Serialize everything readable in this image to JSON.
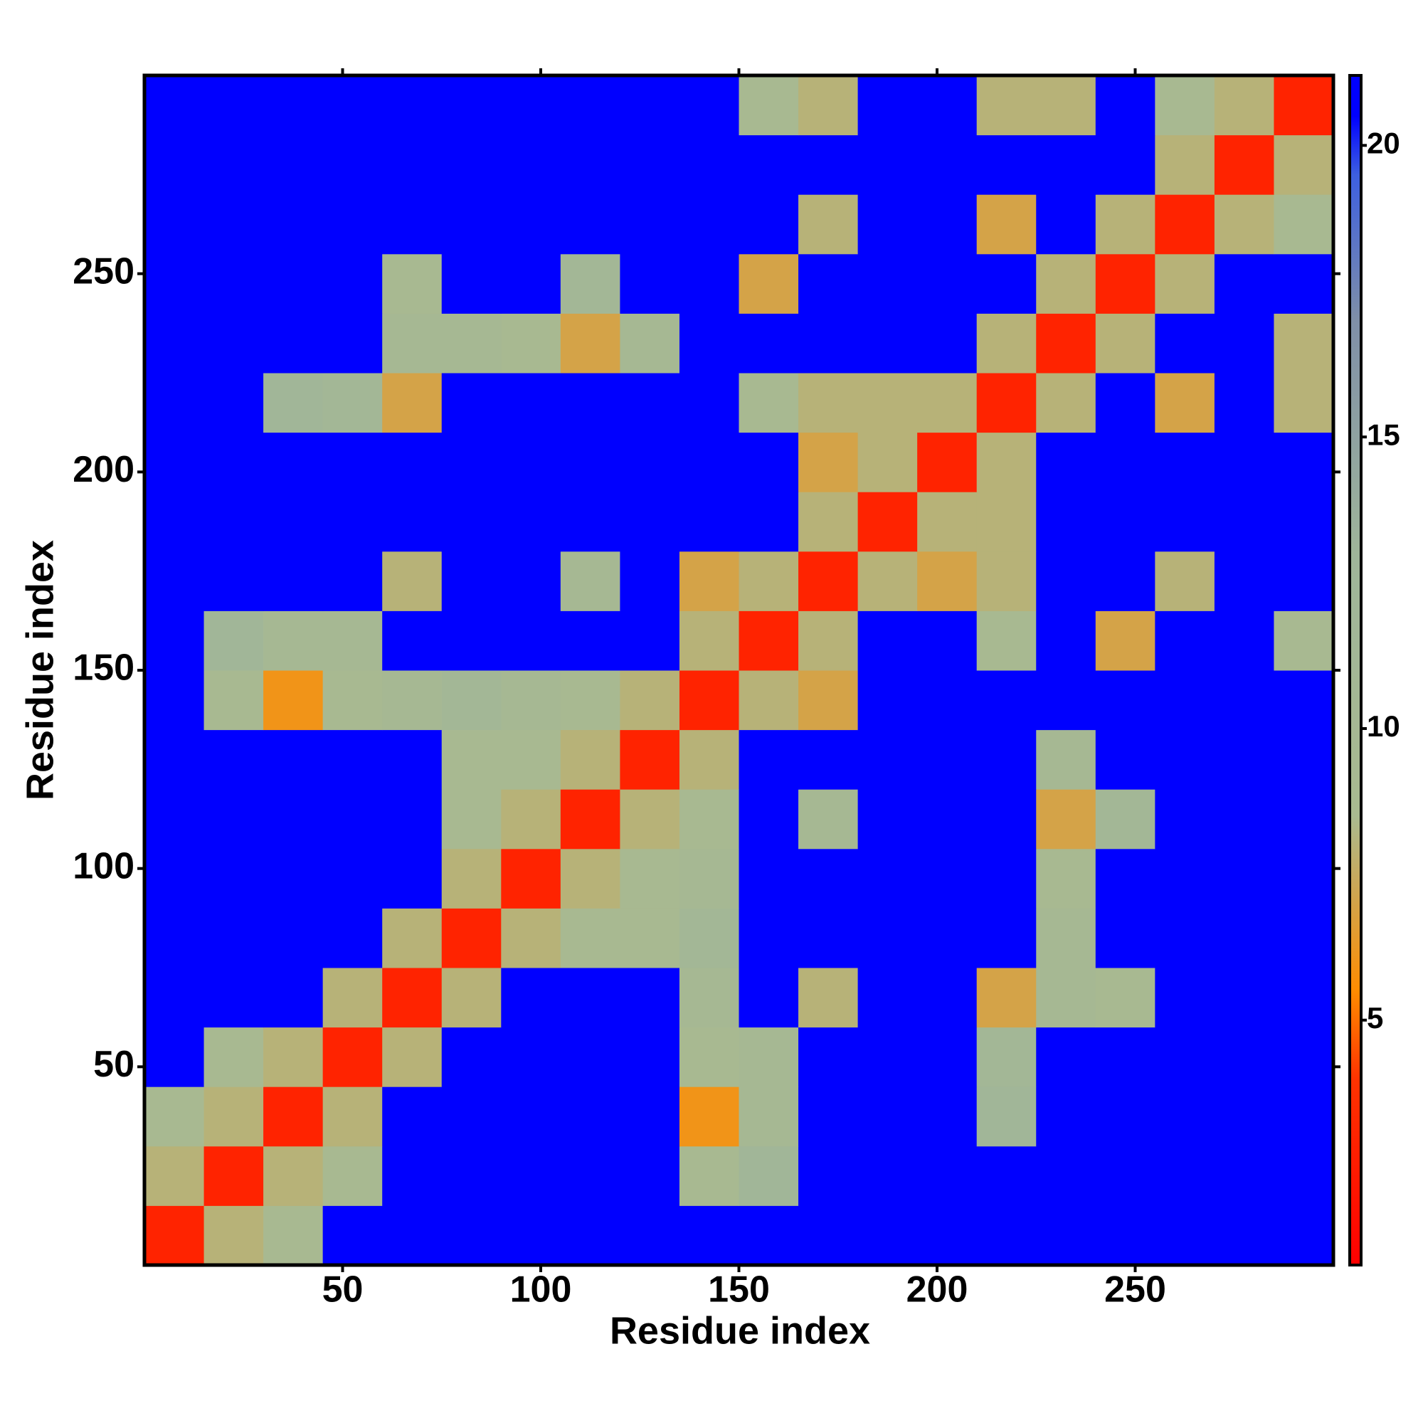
{
  "chart_data": {
    "type": "heatmap",
    "x_label": "Residue index",
    "y_label": "Residue index",
    "bins": [
      0,
      15,
      30,
      45,
      60,
      75,
      90,
      105,
      120,
      135,
      150,
      165,
      180,
      195,
      210,
      225,
      240,
      255,
      270,
      285,
      300
    ],
    "z": [
      [
        3,
        8,
        9,
        21,
        21,
        21,
        21,
        21,
        21,
        21,
        21,
        21,
        21,
        21,
        21,
        21,
        21,
        21,
        21,
        21
      ],
      [
        8,
        3,
        8,
        9,
        21,
        21,
        21,
        21,
        21,
        9,
        12,
        21,
        21,
        21,
        21,
        21,
        21,
        21,
        21,
        21
      ],
      [
        9,
        8,
        3,
        8,
        21,
        21,
        21,
        21,
        21,
        6,
        10,
        21,
        21,
        21,
        12,
        21,
        21,
        21,
        21,
        21
      ],
      [
        21,
        9,
        8,
        3,
        8,
        21,
        21,
        21,
        21,
        9,
        10,
        21,
        21,
        21,
        11,
        21,
        21,
        21,
        21,
        21
      ],
      [
        21,
        21,
        21,
        8,
        3,
        8,
        21,
        21,
        21,
        10,
        21,
        8,
        21,
        21,
        7,
        10,
        9,
        21,
        21,
        21
      ],
      [
        21,
        21,
        21,
        21,
        8,
        3,
        8,
        9,
        9,
        11,
        21,
        21,
        21,
        21,
        21,
        10,
        21,
        21,
        21,
        21
      ],
      [
        21,
        21,
        21,
        21,
        21,
        8,
        3,
        8,
        9,
        10,
        21,
        21,
        21,
        21,
        21,
        9,
        21,
        21,
        21,
        21
      ],
      [
        21,
        21,
        21,
        21,
        21,
        9,
        8,
        3,
        8,
        9,
        21,
        10,
        21,
        21,
        21,
        7,
        11,
        21,
        21,
        21
      ],
      [
        21,
        21,
        21,
        21,
        21,
        9,
        9,
        8,
        3,
        8,
        21,
        21,
        21,
        21,
        21,
        10,
        21,
        21,
        21,
        21
      ],
      [
        21,
        9,
        6,
        9,
        10,
        11,
        10,
        9,
        8,
        3,
        8,
        7,
        21,
        21,
        21,
        21,
        21,
        21,
        21,
        21
      ],
      [
        21,
        12,
        10,
        10,
        21,
        21,
        21,
        21,
        21,
        8,
        3,
        8,
        21,
        21,
        9,
        21,
        7,
        21,
        21,
        9
      ],
      [
        21,
        21,
        21,
        21,
        8,
        21,
        21,
        10,
        21,
        7,
        8,
        3,
        8,
        7,
        8,
        21,
        21,
        8,
        21,
        21
      ],
      [
        21,
        21,
        21,
        21,
        21,
        21,
        21,
        21,
        21,
        21,
        21,
        8,
        3,
        8,
        8,
        21,
        21,
        21,
        21,
        21
      ],
      [
        21,
        21,
        21,
        21,
        21,
        21,
        21,
        21,
        21,
        21,
        21,
        7,
        8,
        3,
        8,
        21,
        21,
        21,
        21,
        21
      ],
      [
        21,
        21,
        12,
        11,
        7,
        21,
        21,
        21,
        21,
        21,
        9,
        8,
        8,
        8,
        3,
        8,
        21,
        7,
        21,
        8
      ],
      [
        21,
        21,
        21,
        21,
        10,
        10,
        9,
        7,
        10,
        21,
        21,
        21,
        21,
        21,
        8,
        3,
        8,
        21,
        21,
        8
      ],
      [
        21,
        21,
        21,
        21,
        9,
        21,
        21,
        11,
        21,
        21,
        7,
        21,
        21,
        21,
        21,
        8,
        3,
        8,
        21,
        21
      ],
      [
        21,
        21,
        21,
        21,
        21,
        21,
        21,
        21,
        21,
        21,
        21,
        8,
        21,
        21,
        7,
        21,
        8,
        3,
        8,
        9
      ],
      [
        21,
        21,
        21,
        21,
        21,
        21,
        21,
        21,
        21,
        21,
        21,
        21,
        21,
        21,
        21,
        21,
        21,
        8,
        3,
        8
      ],
      [
        21,
        21,
        21,
        21,
        21,
        21,
        21,
        21,
        21,
        21,
        9,
        8,
        21,
        21,
        8,
        8,
        21,
        9,
        8,
        3
      ]
    ],
    "xlim": [
      0,
      300
    ],
    "ylim": [
      0,
      300
    ],
    "xticks": [
      50,
      100,
      150,
      200,
      250
    ],
    "yticks": [
      50,
      100,
      150,
      200,
      250
    ],
    "colorbar_lim": [
      0.8,
      21.2
    ],
    "colorbar_ticks": [
      5,
      10,
      15,
      20
    ],
    "colorscale": [
      {
        "value": 0.8,
        "color": "#ff0000"
      },
      {
        "value": 4,
        "color": "#ff3300"
      },
      {
        "value": 5.5,
        "color": "#ff8c00"
      },
      {
        "value": 8.5,
        "color": "#a9ba90"
      },
      {
        "value": 13,
        "color": "#9fb59a"
      },
      {
        "value": 17,
        "color": "#7f8fa8"
      },
      {
        "value": 19.5,
        "color": "#3d5fe0"
      },
      {
        "value": 20.5,
        "color": "#0000ff"
      },
      {
        "value": 21.2,
        "color": "#0000ff"
      }
    ]
  }
}
